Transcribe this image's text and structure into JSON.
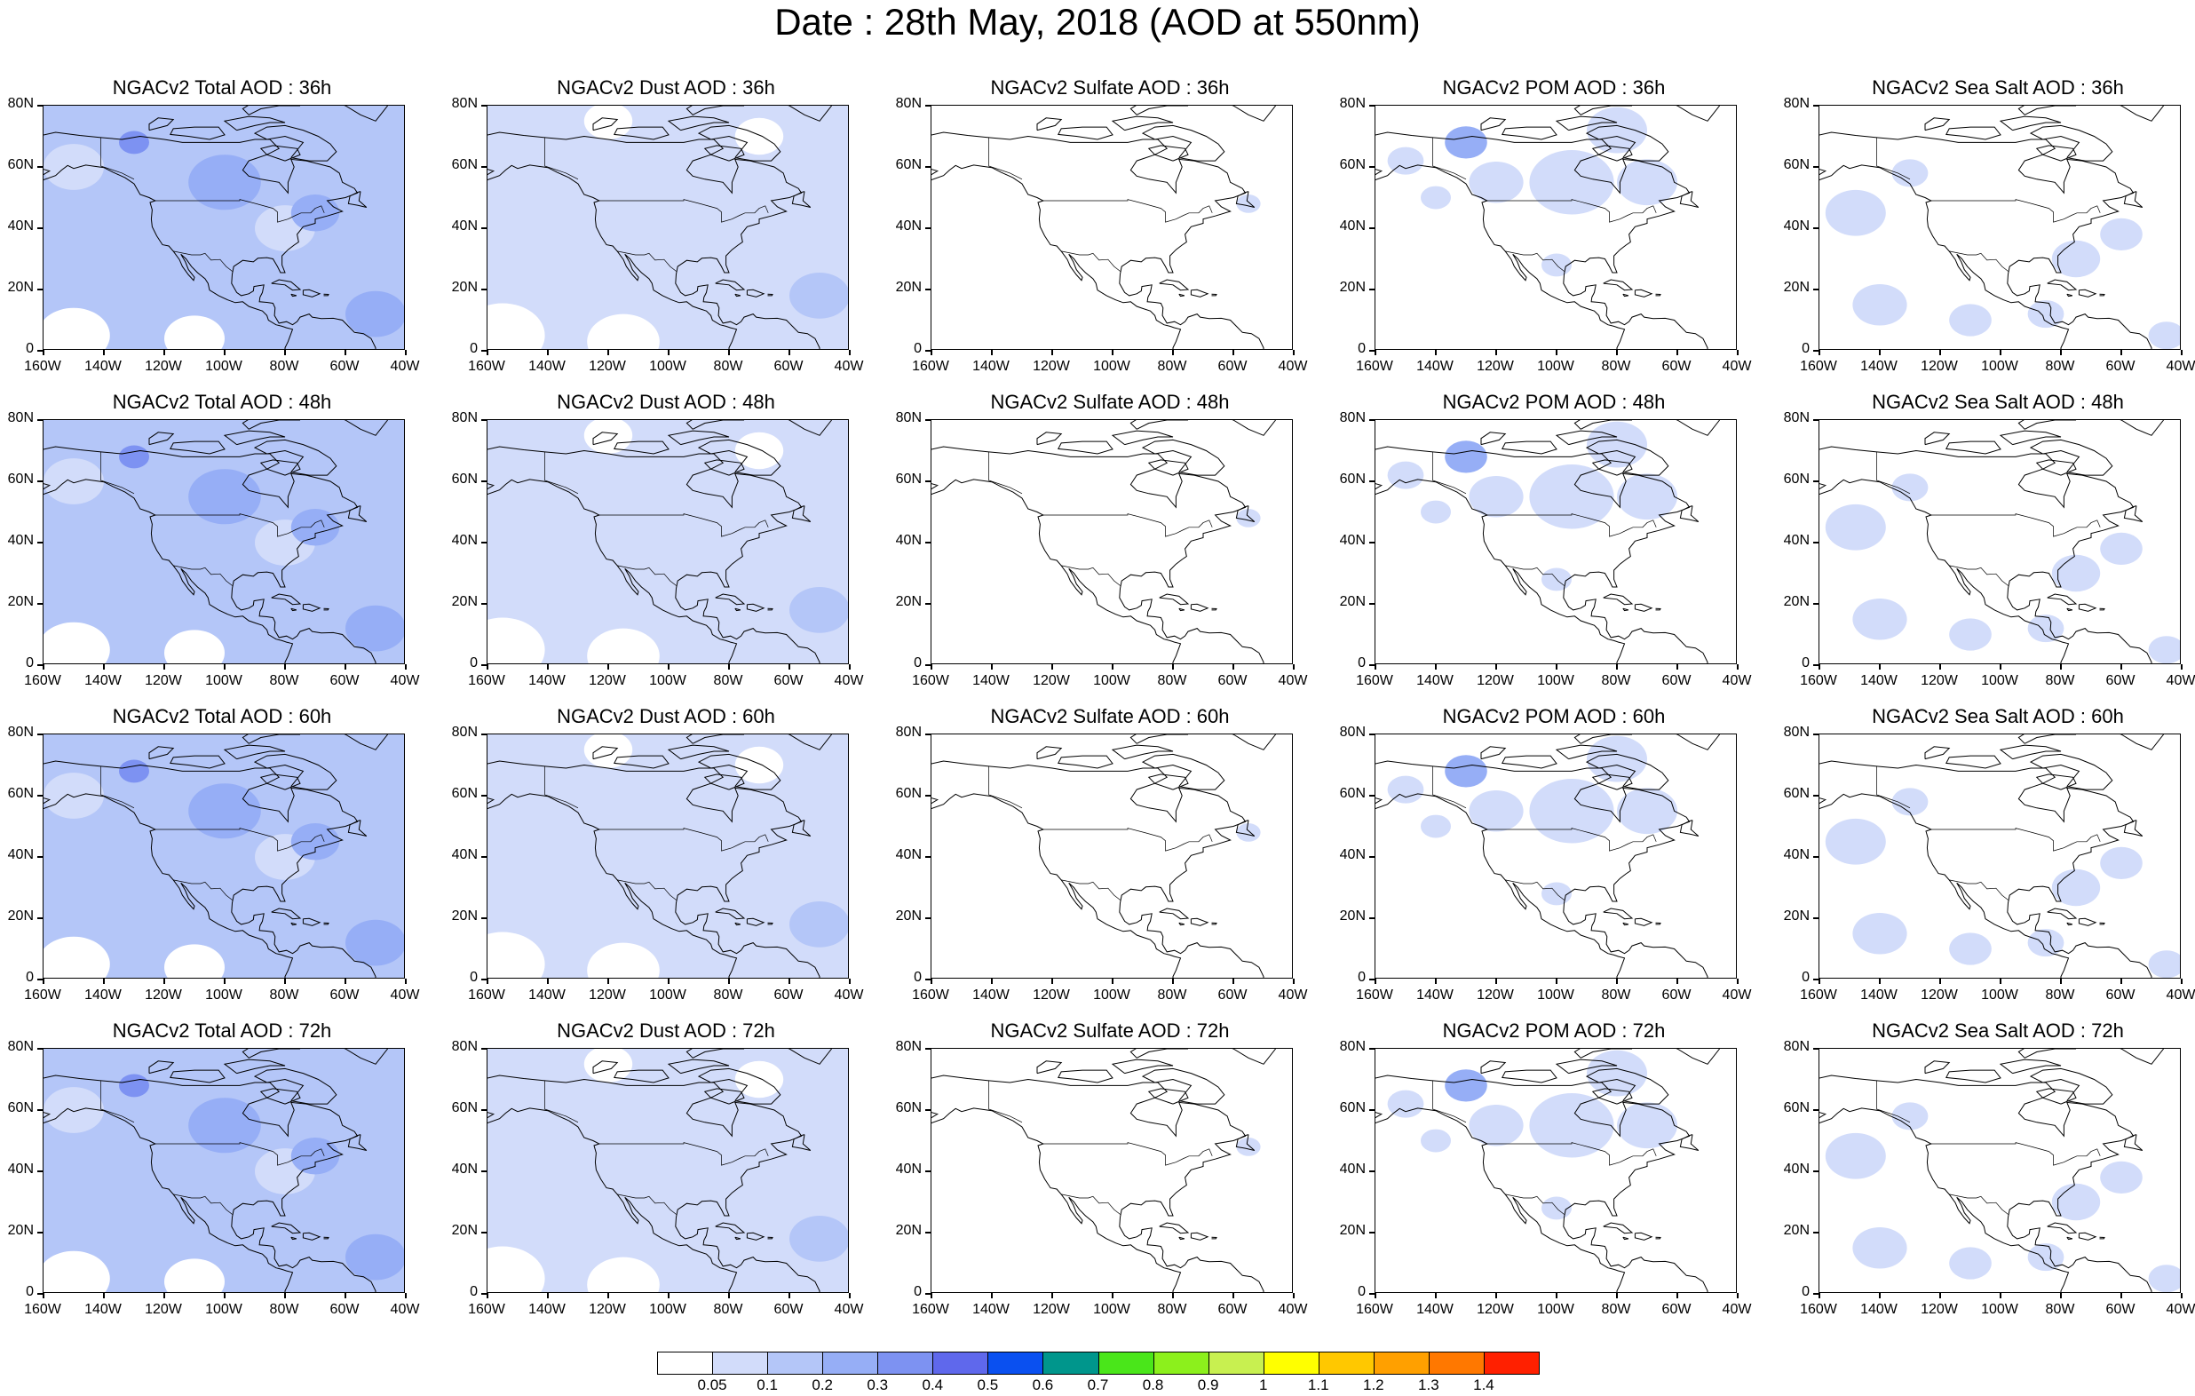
{
  "title": "Date : 28th May, 2018 (AOD at 550nm)",
  "map": {
    "lat_ticks": [
      "80N",
      "60N",
      "40N",
      "20N",
      "0"
    ],
    "lon_ticks": [
      "160W",
      "140W",
      "120W",
      "100W",
      "80W",
      "60W",
      "40W"
    ],
    "region_lon_range": [
      -160,
      -40
    ],
    "region_lat_range": [
      0,
      80
    ]
  },
  "panels": [
    {
      "title": "NGACv2 Total AOD : 36h",
      "variable": "Total",
      "forecast_hour": 36,
      "level": 0.15
    },
    {
      "title": "NGACv2 Dust AOD : 36h",
      "variable": "Dust",
      "forecast_hour": 36,
      "level": 0.08
    },
    {
      "title": "NGACv2 Sulfate AOD : 36h",
      "variable": "Sulfate",
      "forecast_hour": 36,
      "level": 0.0
    },
    {
      "title": "NGACv2 POM AOD : 36h",
      "variable": "POM",
      "forecast_hour": 36,
      "level": 0.1
    },
    {
      "title": "NGACv2 Sea Salt AOD : 36h",
      "variable": "Sea Salt",
      "forecast_hour": 36,
      "level": 0.05
    },
    {
      "title": "NGACv2 Total AOD : 48h",
      "variable": "Total",
      "forecast_hour": 48,
      "level": 0.15
    },
    {
      "title": "NGACv2 Dust AOD : 48h",
      "variable": "Dust",
      "forecast_hour": 48,
      "level": 0.08
    },
    {
      "title": "NGACv2 Sulfate AOD : 48h",
      "variable": "Sulfate",
      "forecast_hour": 48,
      "level": 0.0
    },
    {
      "title": "NGACv2 POM AOD : 48h",
      "variable": "POM",
      "forecast_hour": 48,
      "level": 0.1
    },
    {
      "title": "NGACv2 Sea Salt AOD : 48h",
      "variable": "Sea Salt",
      "forecast_hour": 48,
      "level": 0.05
    },
    {
      "title": "NGACv2 Total AOD : 60h",
      "variable": "Total",
      "forecast_hour": 60,
      "level": 0.15
    },
    {
      "title": "NGACv2 Dust AOD : 60h",
      "variable": "Dust",
      "forecast_hour": 60,
      "level": 0.08
    },
    {
      "title": "NGACv2 Sulfate AOD : 60h",
      "variable": "Sulfate",
      "forecast_hour": 60,
      "level": 0.0
    },
    {
      "title": "NGACv2 POM AOD : 60h",
      "variable": "POM",
      "forecast_hour": 60,
      "level": 0.1
    },
    {
      "title": "NGACv2 Sea Salt AOD : 60h",
      "variable": "Sea Salt",
      "forecast_hour": 60,
      "level": 0.05
    },
    {
      "title": "NGACv2 Total AOD : 72h",
      "variable": "Total",
      "forecast_hour": 72,
      "level": 0.15
    },
    {
      "title": "NGACv2 Dust AOD : 72h",
      "variable": "Dust",
      "forecast_hour": 72,
      "level": 0.08
    },
    {
      "title": "NGACv2 Sulfate AOD : 72h",
      "variable": "Sulfate",
      "forecast_hour": 72,
      "level": 0.0
    },
    {
      "title": "NGACv2 POM AOD : 72h",
      "variable": "POM",
      "forecast_hour": 72,
      "level": 0.1
    },
    {
      "title": "NGACv2 Sea Salt  AOD : 72h",
      "variable": "Sea Salt",
      "forecast_hour": 72,
      "level": 0.05
    }
  ],
  "colorbar": {
    "labels": [
      "0.05",
      "0.1",
      "0.2",
      "0.3",
      "0.4",
      "0.5",
      "0.6",
      "0.7",
      "0.8",
      "0.9",
      "1",
      "1.1",
      "1.2",
      "1.3",
      "1.4"
    ],
    "colors": [
      "#ffffff",
      "#d2dcfa",
      "#b4c6f8",
      "#96aef6",
      "#7d92f2",
      "#5f68ec",
      "#0a50f0",
      "#00968c",
      "#4ae61a",
      "#8cf01c",
      "#c8f050",
      "#ffff00",
      "#ffc800",
      "#ffa000",
      "#ff7800",
      "#ff2000"
    ]
  }
}
